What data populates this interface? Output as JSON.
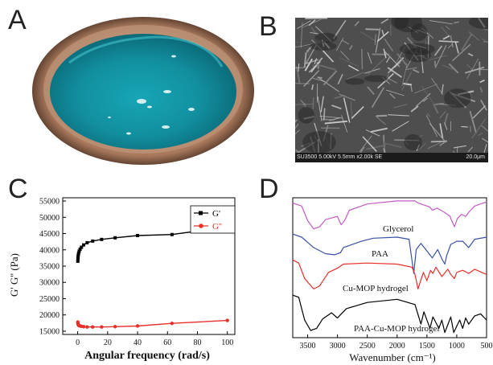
{
  "panels": {
    "A": {
      "letter": "A"
    },
    "B": {
      "letter": "B",
      "sem_caption": "SU3500 5.00kV 5.5mm x2.00k SE",
      "scale_label": "20.0μm"
    },
    "C": {
      "letter": "C"
    },
    "D": {
      "letter": "D"
    }
  },
  "chart_data": [
    {
      "panel": "C",
      "type": "line",
      "xlabel": "Angular frequency (rad/s)",
      "ylabel": "G' G'' (Pa)",
      "xlim": [
        -10,
        105
      ],
      "ylim": [
        14000,
        56000
      ],
      "xticks": [
        "0",
        "20",
        "40",
        "60",
        "80",
        "100"
      ],
      "yticks": [
        "15000",
        "20000",
        "25000",
        "30000",
        "35000",
        "40000",
        "45000",
        "50000",
        "55000"
      ],
      "legend_position": "top-right",
      "series": [
        {
          "name": "G'",
          "color": "#000000",
          "x": [
            0.1,
            0.16,
            0.25,
            0.4,
            0.63,
            1.0,
            1.6,
            2.5,
            4.0,
            6.3,
            10,
            16,
            25,
            40,
            63,
            100
          ],
          "y": [
            36500,
            37200,
            37800,
            38400,
            39000,
            39600,
            40200,
            40800,
            41500,
            42200,
            42700,
            43200,
            43700,
            44400,
            44700,
            47000
          ]
        },
        {
          "name": "G''",
          "color": "#e8302a",
          "x": [
            0.1,
            0.16,
            0.25,
            0.4,
            0.63,
            1.0,
            1.6,
            2.5,
            4.0,
            6.3,
            10,
            16,
            25,
            40,
            63,
            100
          ],
          "y": [
            17800,
            17500,
            17200,
            17000,
            16800,
            16700,
            16600,
            16500,
            16400,
            16300,
            16300,
            16300,
            16400,
            16600,
            17400,
            18300
          ]
        }
      ]
    },
    {
      "panel": "D",
      "type": "line",
      "xlabel": "Wavenumber (cm⁻¹)",
      "xlim": [
        3750,
        500
      ],
      "xticks": [
        "3500",
        "3000",
        "2500",
        "2000",
        "1500",
        "1000",
        "500"
      ],
      "series": [
        {
          "name": "Glycerol",
          "color": "#c45ac6",
          "x": [
            3750,
            3600,
            3500,
            3400,
            3300,
            3200,
            3000,
            2940,
            2880,
            2800,
            2500,
            2000,
            1700,
            1650,
            1450,
            1410,
            1330,
            1210,
            1110,
            1100,
            1040,
            990,
            920,
            850,
            800,
            700,
            500
          ],
          "y": [
            0.95,
            0.92,
            0.78,
            0.7,
            0.72,
            0.79,
            0.82,
            0.74,
            0.78,
            0.88,
            0.94,
            0.97,
            0.97,
            0.95,
            0.91,
            0.88,
            0.9,
            0.86,
            0.82,
            0.8,
            0.72,
            0.8,
            0.84,
            0.82,
            0.86,
            0.92,
            0.96
          ]
        },
        {
          "name": "PAA",
          "color": "#3a4fa8",
          "x": [
            3750,
            3600,
            3400,
            3200,
            3050,
            2950,
            2900,
            2600,
            2400,
            2000,
            1800,
            1720,
            1680,
            1600,
            1450,
            1410,
            1320,
            1240,
            1200,
            1170,
            1100,
            1000,
            900,
            800,
            700,
            500
          ],
          "y": [
            0.65,
            0.62,
            0.52,
            0.46,
            0.45,
            0.47,
            0.52,
            0.58,
            0.61,
            0.62,
            0.6,
            0.27,
            0.5,
            0.56,
            0.45,
            0.42,
            0.5,
            0.4,
            0.36,
            0.44,
            0.55,
            0.58,
            0.58,
            0.52,
            0.6,
            0.62
          ]
        },
        {
          "name": "Cu-MOP hydrogel",
          "color": "#e8302a",
          "x": [
            3750,
            3650,
            3550,
            3400,
            3300,
            3150,
            3000,
            2900,
            2500,
            2000,
            1750,
            1700,
            1650,
            1560,
            1500,
            1440,
            1400,
            1350,
            1250,
            1150,
            1100,
            1040,
            1000,
            900,
            800,
            700,
            500
          ],
          "y": [
            0.4,
            0.37,
            0.22,
            0.12,
            0.15,
            0.28,
            0.32,
            0.36,
            0.37,
            0.36,
            0.33,
            0.26,
            0.12,
            0.28,
            0.2,
            0.3,
            0.27,
            0.33,
            0.24,
            0.31,
            0.26,
            0.22,
            0.28,
            0.3,
            0.27,
            0.31,
            0.26
          ]
        },
        {
          "name": "PAA-Cu-MOP hydrogel",
          "color": "#000000",
          "x": [
            3750,
            3650,
            3550,
            3450,
            3350,
            3250,
            3100,
            3000,
            2950,
            2850,
            2500,
            2000,
            1700,
            1600,
            1550,
            1450,
            1400,
            1300,
            1250,
            1200,
            1100,
            1050,
            1000,
            950,
            900,
            850,
            800,
            700,
            600,
            500
          ],
          "y": [
            0.06,
            0.04,
            -0.18,
            -0.28,
            -0.26,
            -0.17,
            -0.11,
            -0.16,
            -0.13,
            -0.07,
            -0.01,
            0.02,
            -0.03,
            -0.22,
            -0.1,
            -0.26,
            -0.15,
            -0.26,
            -0.18,
            -0.3,
            -0.15,
            -0.3,
            -0.24,
            -0.18,
            -0.26,
            -0.16,
            -0.22,
            -0.14,
            -0.12,
            -0.18
          ]
        }
      ]
    }
  ]
}
